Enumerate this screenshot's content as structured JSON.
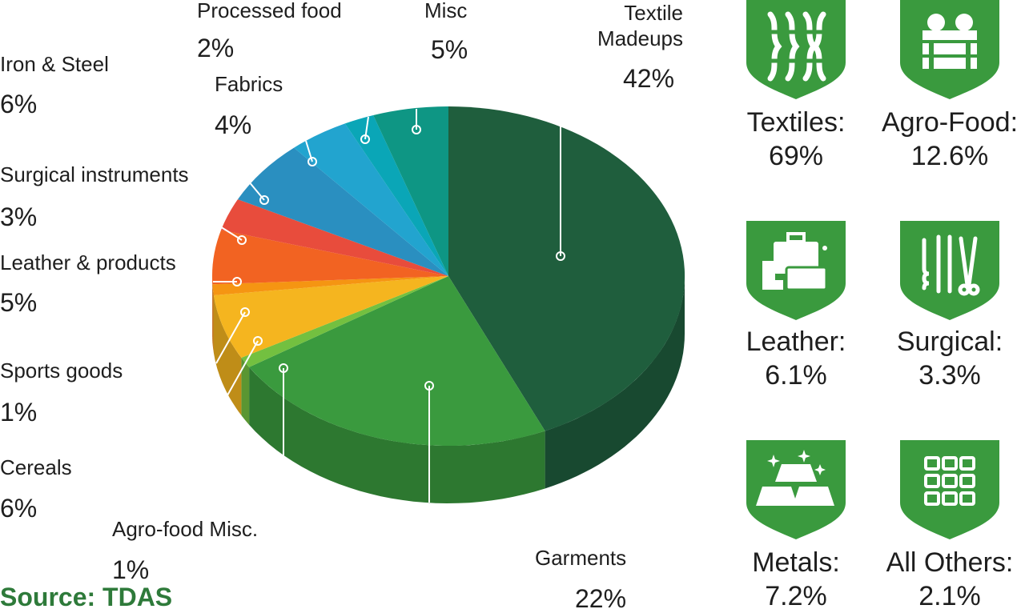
{
  "chart_data": {
    "type": "pie",
    "title": "",
    "slices": [
      {
        "label": "Textile\nMadeups",
        "pct_text": "42%",
        "value": 42,
        "color": "#1f5e3d"
      },
      {
        "label": "Garments",
        "pct_text": "22%",
        "value": 22,
        "color": "#3a9a3e"
      },
      {
        "label": "Agro-food Misc.",
        "pct_text": "1%",
        "value": 1,
        "color": "#73c040"
      },
      {
        "label": "Cereals",
        "pct_text": "6%",
        "value": 6,
        "color": "#f5b51f"
      },
      {
        "label": "Sports goods",
        "pct_text": "1%",
        "value": 1,
        "color": "#f59512"
      },
      {
        "label": "Leather & products",
        "pct_text": "5%",
        "value": 5,
        "color": "#f26322"
      },
      {
        "label": "Surgical instruments",
        "pct_text": "3%",
        "value": 3,
        "color": "#e84c3c"
      },
      {
        "label": "Iron & Steel",
        "pct_text": "6%",
        "value": 6,
        "color": "#2a8fc0"
      },
      {
        "label": "Fabrics",
        "pct_text": "4%",
        "value": 4,
        "color": "#22a4cf"
      },
      {
        "label": "Processed food",
        "pct_text": "2%",
        "value": 2,
        "color": "#0aa6b7"
      },
      {
        "label": "Misc",
        "pct_text": "5%",
        "value": 5,
        "color": "#0e9684"
      }
    ]
  },
  "categories": [
    {
      "name": "Textiles:",
      "value": "69%",
      "icon": "textile-icon"
    },
    {
      "name": "Agro-Food:",
      "value": "12.6%",
      "icon": "crate-icon"
    },
    {
      "name": "Leather:",
      "value": "6.1%",
      "icon": "leather-goods-icon"
    },
    {
      "name": "Surgical:",
      "value": "3.3%",
      "icon": "surgical-tools-icon"
    },
    {
      "name": "Metals:",
      "value": "7.2%",
      "icon": "metal-bars-icon"
    },
    {
      "name": "All Others:",
      "value": "2.1%",
      "icon": "grid-icon"
    }
  ],
  "colors": {
    "badge": "#3a9a3e",
    "source": "#2e7a3a",
    "leader": "#ffffff"
  },
  "source": "Source: TDAS"
}
